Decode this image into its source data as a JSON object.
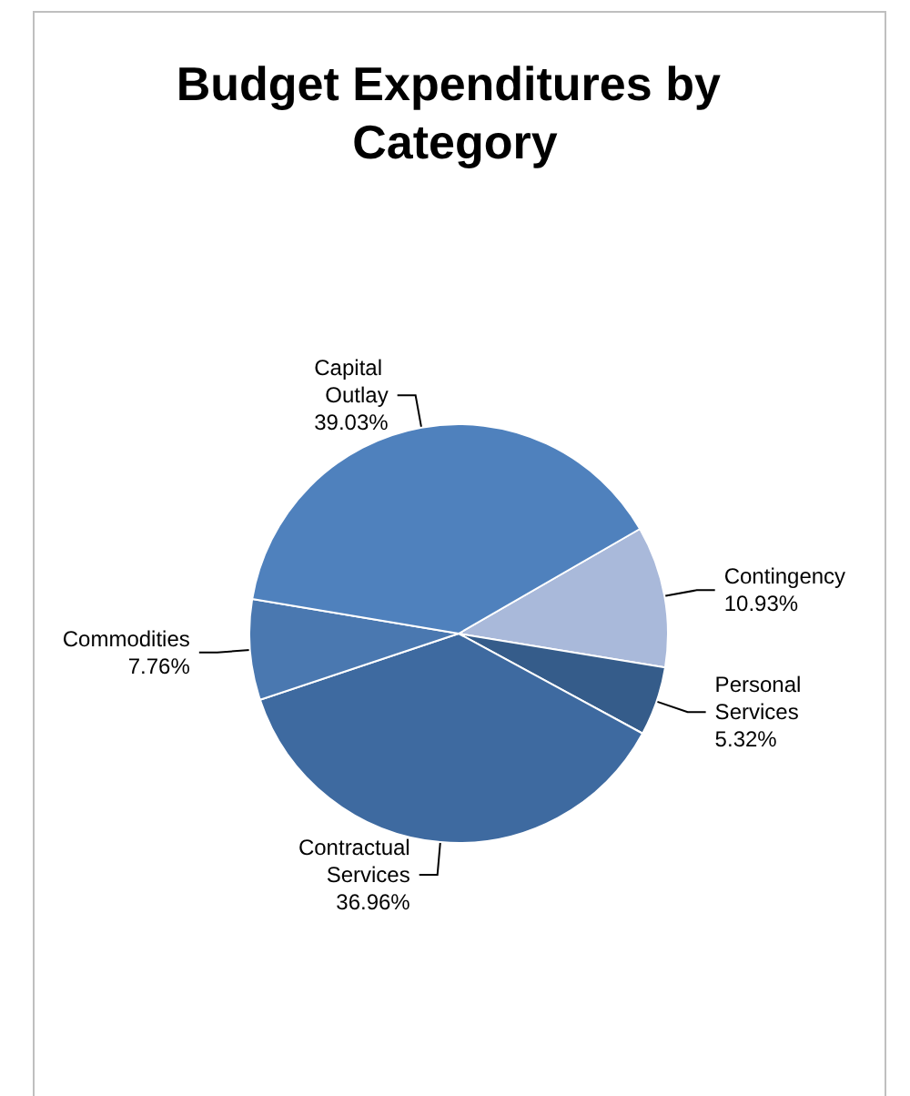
{
  "chart_data": {
    "type": "pie",
    "title": "Budget Expenditures by Category",
    "categories": [
      "Contingency",
      "Personal Services",
      "Contractual Services",
      "Commodities",
      "Capital Outlay"
    ],
    "values": [
      10.93,
      5.32,
      36.96,
      7.76,
      39.03
    ],
    "value_labels": [
      "10.93%",
      "5.32%",
      "36.96%",
      "7.76%",
      "39.03%"
    ],
    "colors": [
      "#a9b9da",
      "#355c8a",
      "#3e6aa0",
      "#4a78b0",
      "#4f81bd"
    ],
    "legend": false
  }
}
